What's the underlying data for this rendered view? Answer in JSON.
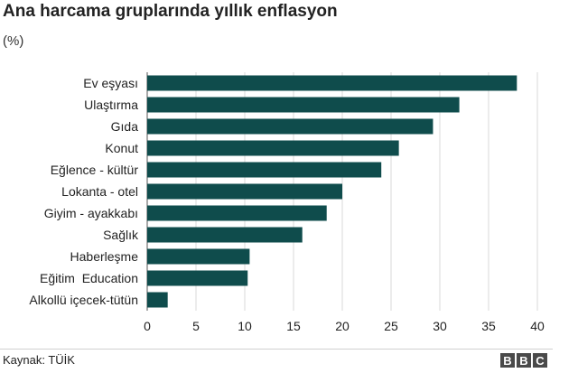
{
  "header": {
    "title": "Ana harcama gruplarında yıllık enflasyon",
    "subtitle": "(%)"
  },
  "footer": {
    "source": "Kaynak: TÜİK",
    "logo": [
      "B",
      "B",
      "C"
    ]
  },
  "colors": {
    "bar": "#0f4c4c",
    "grid": "#d9d9d9",
    "axis": "#555555"
  },
  "chart_data": {
    "type": "bar",
    "orientation": "horizontal",
    "title": "Ana harcama gruplarında yıllık enflasyon",
    "subtitle": "(%)",
    "categories": [
      "Ev eşyası",
      "Ulaştırma",
      "Gıda",
      "Konut",
      "Eğlence - kültür",
      "Lokanta - otel",
      "Giyim - ayakkabı",
      "Sağlık",
      "Haberleşme",
      "Eğitim  Education",
      "Alkollü içecek-tütün"
    ],
    "values": [
      37.9,
      32.0,
      29.3,
      25.8,
      24.0,
      20.0,
      18.4,
      15.9,
      10.5,
      10.3,
      2.1
    ],
    "xlim": [
      0,
      40
    ],
    "xticks": [
      0,
      5,
      10,
      15,
      20,
      25,
      30,
      35,
      40
    ],
    "grid": true
  }
}
